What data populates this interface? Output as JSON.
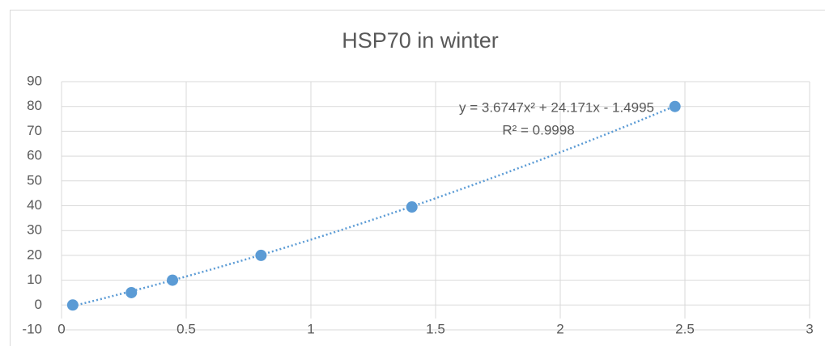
{
  "chart_data": {
    "type": "scatter",
    "title": "HSP70 in winter",
    "x": [
      0.045,
      0.28,
      0.445,
      0.8,
      1.405,
      2.46
    ],
    "values": [
      0,
      5,
      10,
      20,
      39.5,
      80
    ],
    "color": "#5b9bd5",
    "xlim": [
      0,
      3
    ],
    "xticks": [
      0,
      0.5,
      1,
      1.5,
      2,
      2.5,
      3
    ],
    "ylim": [
      -10,
      90
    ],
    "yticks": [
      -10,
      0,
      10,
      20,
      30,
      40,
      50,
      60,
      70,
      80,
      90
    ],
    "grid": true,
    "trendline": {
      "equation": "y = 3.6747x² + 24.171x - 1.4995",
      "r_squared": "R² = 0.9998",
      "coefficients": [
        3.6747,
        24.171,
        -1.4995
      ]
    }
  }
}
